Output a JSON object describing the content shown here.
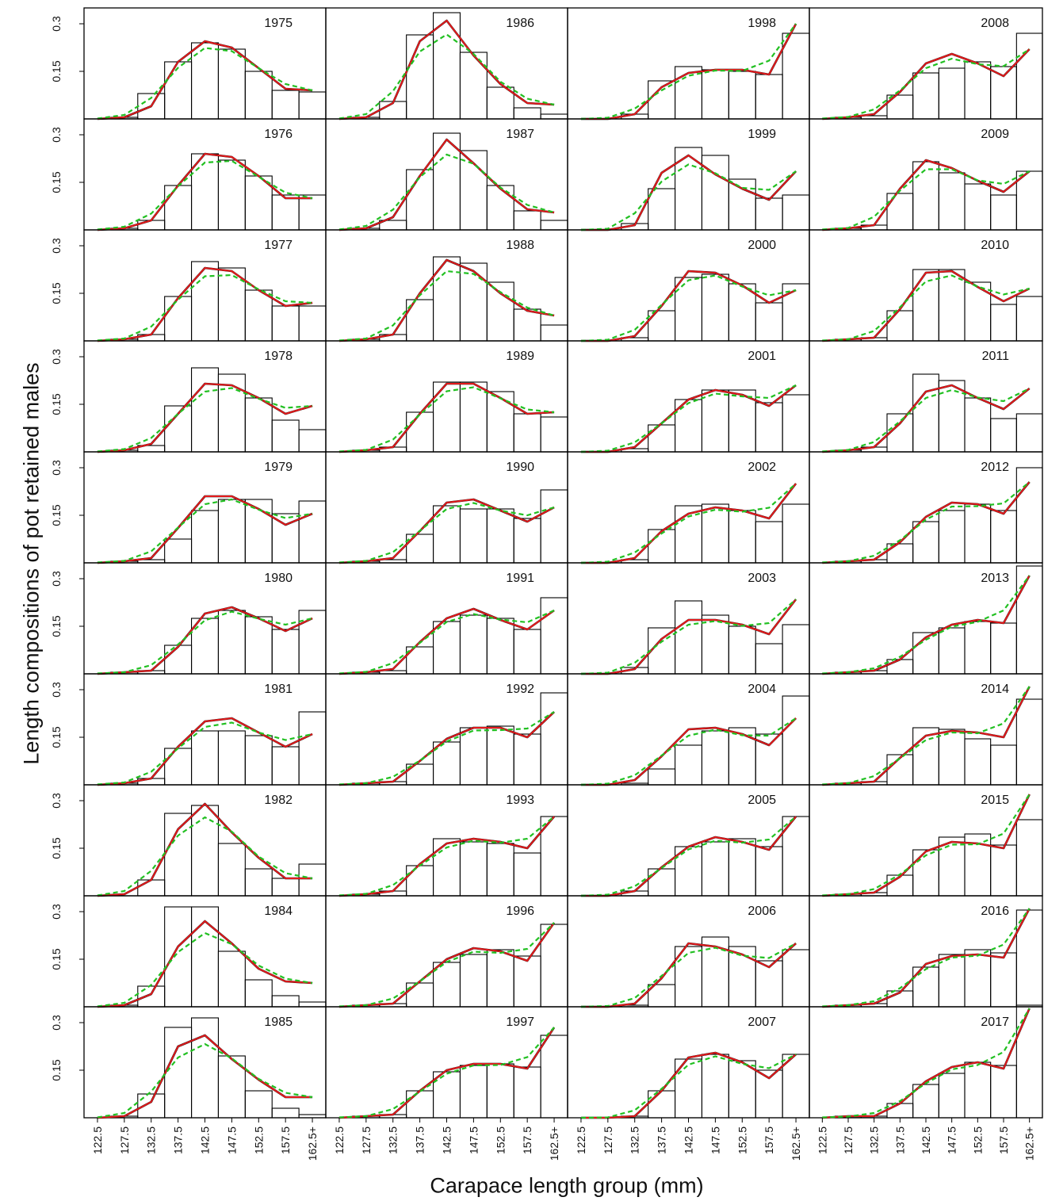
{
  "chart_data": {
    "type": "bar",
    "ylabel": "Length compositions of pot retained males",
    "xlabel": "Carapace length group (mm)",
    "categories": [
      "122.5",
      "127.5",
      "132.5",
      "137.5",
      "142.5",
      "147.5",
      "152.5",
      "157.5",
      "162.5+"
    ],
    "ylim": [
      0,
      0.35
    ],
    "yticks": [
      "0.15",
      "0.3"
    ],
    "layout": "10 rows x 4 columns, years read down each column",
    "line_colors": {
      "bars": "#000000",
      "black_line": "#000000",
      "red_line": "#e41a1c",
      "green_dashed": "#22c022"
    },
    "panels": [
      {
        "year": "1975",
        "obs": [
          0,
          0.005,
          0.08,
          0.18,
          0.24,
          0.22,
          0.15,
          0.09,
          0.085
        ],
        "fit": [
          0,
          0.005,
          0.04,
          0.18,
          0.245,
          0.225,
          0.16,
          0.095,
          0.09
        ]
      },
      {
        "year": "1976",
        "obs": [
          0,
          0.005,
          0.03,
          0.14,
          0.24,
          0.22,
          0.17,
          0.11,
          0.11
        ],
        "fit": [
          0,
          0.005,
          0.03,
          0.14,
          0.24,
          0.23,
          0.17,
          0.1,
          0.1
        ]
      },
      {
        "year": "1977",
        "obs": [
          0,
          0.005,
          0.02,
          0.14,
          0.25,
          0.23,
          0.16,
          0.11,
          0.11
        ],
        "fit": [
          0,
          0.005,
          0.02,
          0.135,
          0.23,
          0.22,
          0.16,
          0.11,
          0.12
        ]
      },
      {
        "year": "1978",
        "obs": [
          0,
          0.005,
          0.02,
          0.145,
          0.265,
          0.245,
          0.17,
          0.1,
          0.07
        ],
        "fit": [
          0,
          0.005,
          0.025,
          0.12,
          0.215,
          0.21,
          0.17,
          0.12,
          0.145
        ]
      },
      {
        "year": "1979",
        "obs": [
          0,
          0.005,
          0.01,
          0.075,
          0.165,
          0.2,
          0.2,
          0.155,
          0.195
        ],
        "fit": [
          0,
          0.005,
          0.015,
          0.11,
          0.21,
          0.21,
          0.17,
          0.12,
          0.155
        ]
      },
      {
        "year": "1980",
        "obs": [
          0,
          0.005,
          0.01,
          0.09,
          0.175,
          0.2,
          0.18,
          0.14,
          0.2
        ],
        "fit": [
          0,
          0.005,
          0.01,
          0.085,
          0.19,
          0.21,
          0.175,
          0.135,
          0.175
        ]
      },
      {
        "year": "1981",
        "obs": [
          0,
          0.005,
          0.02,
          0.115,
          0.17,
          0.17,
          0.155,
          0.12,
          0.23
        ],
        "fit": [
          0,
          0.005,
          0.02,
          0.12,
          0.2,
          0.21,
          0.165,
          0.12,
          0.16
        ]
      },
      {
        "year": "1982",
        "obs": [
          0,
          0,
          0.05,
          0.26,
          0.285,
          0.165,
          0.085,
          0.055,
          0.1
        ],
        "fit": [
          0,
          0.005,
          0.05,
          0.21,
          0.29,
          0.2,
          0.12,
          0.055,
          0.055
        ]
      },
      {
        "year": "1984",
        "obs": [
          0,
          0.005,
          0.065,
          0.315,
          0.315,
          0.175,
          0.085,
          0.035,
          0.015
        ],
        "fit": [
          0,
          0.005,
          0.04,
          0.19,
          0.27,
          0.2,
          0.12,
          0.08,
          0.075
        ]
      },
      {
        "year": "1985",
        "obs": [
          0,
          0.005,
          0.075,
          0.285,
          0.315,
          0.195,
          0.085,
          0.03,
          0.01
        ],
        "fit": [
          0,
          0.005,
          0.05,
          0.225,
          0.26,
          0.185,
          0.12,
          0.065,
          0.065
        ]
      },
      {
        "year": "1986",
        "obs": [
          0,
          0.005,
          0.055,
          0.265,
          0.335,
          0.21,
          0.1,
          0.035,
          0.015
        ],
        "fit": [
          0,
          0.005,
          0.05,
          0.245,
          0.31,
          0.2,
          0.11,
          0.05,
          0.045
        ]
      },
      {
        "year": "1987",
        "obs": [
          0,
          0.005,
          0.03,
          0.19,
          0.305,
          0.25,
          0.14,
          0.06,
          0.03
        ],
        "fit": [
          0,
          0.005,
          0.04,
          0.17,
          0.285,
          0.21,
          0.13,
          0.065,
          0.055
        ]
      },
      {
        "year": "1988",
        "obs": [
          0,
          0.005,
          0.02,
          0.13,
          0.265,
          0.245,
          0.185,
          0.1,
          0.05
        ],
        "fit": [
          0,
          0.005,
          0.02,
          0.15,
          0.255,
          0.22,
          0.15,
          0.095,
          0.08
        ]
      },
      {
        "year": "1989",
        "obs": [
          0,
          0.005,
          0.015,
          0.125,
          0.22,
          0.22,
          0.19,
          0.12,
          0.11
        ],
        "fit": [
          0,
          0.005,
          0.015,
          0.12,
          0.215,
          0.215,
          0.17,
          0.12,
          0.125
        ]
      },
      {
        "year": "1990",
        "obs": [
          0,
          0.005,
          0.01,
          0.09,
          0.18,
          0.17,
          0.17,
          0.14,
          0.23
        ],
        "fit": [
          0,
          0.005,
          0.015,
          0.1,
          0.19,
          0.2,
          0.165,
          0.13,
          0.175
        ]
      },
      {
        "year": "1991",
        "obs": [
          0,
          0.005,
          0.01,
          0.085,
          0.165,
          0.185,
          0.175,
          0.14,
          0.24
        ],
        "fit": [
          0,
          0.005,
          0.015,
          0.1,
          0.175,
          0.205,
          0.17,
          0.14,
          0.2
        ]
      },
      {
        "year": "1992",
        "obs": [
          0,
          0.005,
          0.01,
          0.065,
          0.135,
          0.18,
          0.185,
          0.16,
          0.29
        ],
        "fit": [
          0,
          0.005,
          0.01,
          0.075,
          0.145,
          0.18,
          0.18,
          0.15,
          0.23
        ]
      },
      {
        "year": "1993",
        "obs": [
          0,
          0.005,
          0.015,
          0.095,
          0.18,
          0.17,
          0.165,
          0.135,
          0.25
        ],
        "fit": [
          0,
          0.005,
          0.015,
          0.1,
          0.165,
          0.18,
          0.17,
          0.15,
          0.25
        ]
      },
      {
        "year": "1996",
        "obs": [
          0,
          0.005,
          0.01,
          0.075,
          0.14,
          0.165,
          0.18,
          0.16,
          0.26
        ],
        "fit": [
          0,
          0.005,
          0.01,
          0.08,
          0.15,
          0.185,
          0.175,
          0.145,
          0.265
        ]
      },
      {
        "year": "1997",
        "obs": [
          0,
          0.005,
          0.01,
          0.085,
          0.145,
          0.165,
          0.17,
          0.16,
          0.26
        ],
        "fit": [
          0,
          0.005,
          0.01,
          0.085,
          0.15,
          0.17,
          0.17,
          0.155,
          0.285
        ]
      },
      {
        "year": "1998",
        "obs": [
          0,
          0,
          0.015,
          0.12,
          0.165,
          0.155,
          0.15,
          0.14,
          0.27
        ],
        "fit": [
          0,
          0,
          0.015,
          0.1,
          0.145,
          0.155,
          0.155,
          0.14,
          0.3
        ]
      },
      {
        "year": "1999",
        "obs": [
          0,
          0,
          0.02,
          0.13,
          0.26,
          0.235,
          0.16,
          0.1,
          0.11
        ],
        "fit": [
          0,
          0,
          0.015,
          0.18,
          0.235,
          0.175,
          0.13,
          0.095,
          0.185
        ]
      },
      {
        "year": "2000",
        "obs": [
          0,
          0,
          0.01,
          0.095,
          0.2,
          0.21,
          0.18,
          0.12,
          0.18
        ],
        "fit": [
          0,
          0,
          0.015,
          0.11,
          0.22,
          0.215,
          0.175,
          0.12,
          0.16
        ]
      },
      {
        "year": "2001",
        "obs": [
          0,
          0,
          0.01,
          0.085,
          0.165,
          0.195,
          0.195,
          0.155,
          0.18
        ],
        "fit": [
          0,
          0,
          0.015,
          0.09,
          0.165,
          0.195,
          0.18,
          0.145,
          0.21
        ]
      },
      {
        "year": "2002",
        "obs": [
          0,
          0,
          0.01,
          0.105,
          0.18,
          0.185,
          0.165,
          0.13,
          0.185
        ],
        "fit": [
          0,
          0,
          0.015,
          0.1,
          0.155,
          0.175,
          0.165,
          0.14,
          0.25
        ]
      },
      {
        "year": "2003",
        "obs": [
          0,
          0,
          0.02,
          0.145,
          0.23,
          0.185,
          0.15,
          0.095,
          0.155
        ],
        "fit": [
          0,
          0,
          0.015,
          0.11,
          0.17,
          0.17,
          0.155,
          0.125,
          0.235
        ]
      },
      {
        "year": "2004",
        "obs": [
          0,
          0,
          0.005,
          0.05,
          0.125,
          0.17,
          0.18,
          0.16,
          0.28
        ],
        "fit": [
          0,
          0,
          0.015,
          0.09,
          0.175,
          0.18,
          0.16,
          0.125,
          0.21
        ]
      },
      {
        "year": "2005",
        "obs": [
          0,
          0,
          0.015,
          0.085,
          0.155,
          0.17,
          0.18,
          0.155,
          0.25
        ],
        "fit": [
          0,
          0,
          0.015,
          0.09,
          0.155,
          0.185,
          0.17,
          0.145,
          0.25
        ]
      },
      {
        "year": "2006",
        "obs": [
          0,
          0,
          0.005,
          0.07,
          0.19,
          0.22,
          0.19,
          0.145,
          0.18
        ],
        "fit": [
          0,
          0,
          0.01,
          0.09,
          0.2,
          0.19,
          0.165,
          0.125,
          0.2
        ]
      },
      {
        "year": "2007",
        "obs": [
          0,
          0,
          0.005,
          0.085,
          0.185,
          0.2,
          0.18,
          0.15,
          0.2
        ],
        "fit": [
          0,
          0,
          0.005,
          0.085,
          0.19,
          0.205,
          0.175,
          0.125,
          0.2
        ]
      },
      {
        "year": "2008",
        "obs": [
          0,
          0.005,
          0.01,
          0.075,
          0.145,
          0.16,
          0.18,
          0.165,
          0.27
        ],
        "fit": [
          0,
          0.005,
          0.015,
          0.085,
          0.175,
          0.205,
          0.175,
          0.135,
          0.22
        ]
      },
      {
        "year": "2009",
        "obs": [
          0,
          0.005,
          0.015,
          0.115,
          0.215,
          0.18,
          0.145,
          0.11,
          0.185
        ],
        "fit": [
          0,
          0.005,
          0.015,
          0.13,
          0.22,
          0.195,
          0.155,
          0.12,
          0.185
        ]
      },
      {
        "year": "2010",
        "obs": [
          0,
          0.005,
          0.01,
          0.095,
          0.225,
          0.225,
          0.185,
          0.115,
          0.14
        ],
        "fit": [
          0,
          0.005,
          0.01,
          0.1,
          0.215,
          0.22,
          0.17,
          0.125,
          0.165
        ]
      },
      {
        "year": "2011",
        "obs": [
          0,
          0.005,
          0.015,
          0.12,
          0.245,
          0.225,
          0.17,
          0.105,
          0.12
        ],
        "fit": [
          0,
          0.005,
          0.015,
          0.09,
          0.19,
          0.21,
          0.17,
          0.135,
          0.2
        ]
      },
      {
        "year": "2012",
        "obs": [
          0,
          0.005,
          0.01,
          0.06,
          0.13,
          0.165,
          0.185,
          0.165,
          0.3
        ],
        "fit": [
          0,
          0.005,
          0.01,
          0.065,
          0.145,
          0.19,
          0.185,
          0.155,
          0.255
        ]
      },
      {
        "year": "2013",
        "obs": [
          0,
          0.005,
          0.01,
          0.045,
          0.13,
          0.145,
          0.165,
          0.16,
          0.34
        ],
        "fit": [
          0,
          0.005,
          0.01,
          0.045,
          0.115,
          0.155,
          0.17,
          0.16,
          0.31
        ]
      },
      {
        "year": "2014",
        "obs": [
          0,
          0.005,
          0.01,
          0.095,
          0.18,
          0.175,
          0.145,
          0.125,
          0.27
        ],
        "fit": [
          0,
          0.005,
          0.01,
          0.085,
          0.155,
          0.17,
          0.165,
          0.15,
          0.31
        ]
      },
      {
        "year": "2015",
        "obs": [
          0,
          0.005,
          0.01,
          0.065,
          0.145,
          0.185,
          0.195,
          0.16,
          0.24
        ],
        "fit": [
          0,
          0.005,
          0.01,
          0.06,
          0.14,
          0.17,
          0.165,
          0.15,
          0.32
        ]
      },
      {
        "year": "2016",
        "obs": [
          0,
          0.005,
          0.01,
          0.05,
          0.125,
          0.165,
          0.18,
          0.17,
          0.305
        ],
        "fit": [
          0,
          0.005,
          0.01,
          0.045,
          0.135,
          0.16,
          0.165,
          0.155,
          0.31
        ]
      },
      {
        "year": "2017",
        "obs": [
          0,
          0.005,
          0.005,
          0.045,
          0.105,
          0.14,
          0.175,
          0.165,
          0.355
        ],
        "fit": [
          0,
          0.005,
          0.005,
          0.045,
          0.115,
          0.16,
          0.175,
          0.155,
          0.345
        ]
      }
    ]
  }
}
